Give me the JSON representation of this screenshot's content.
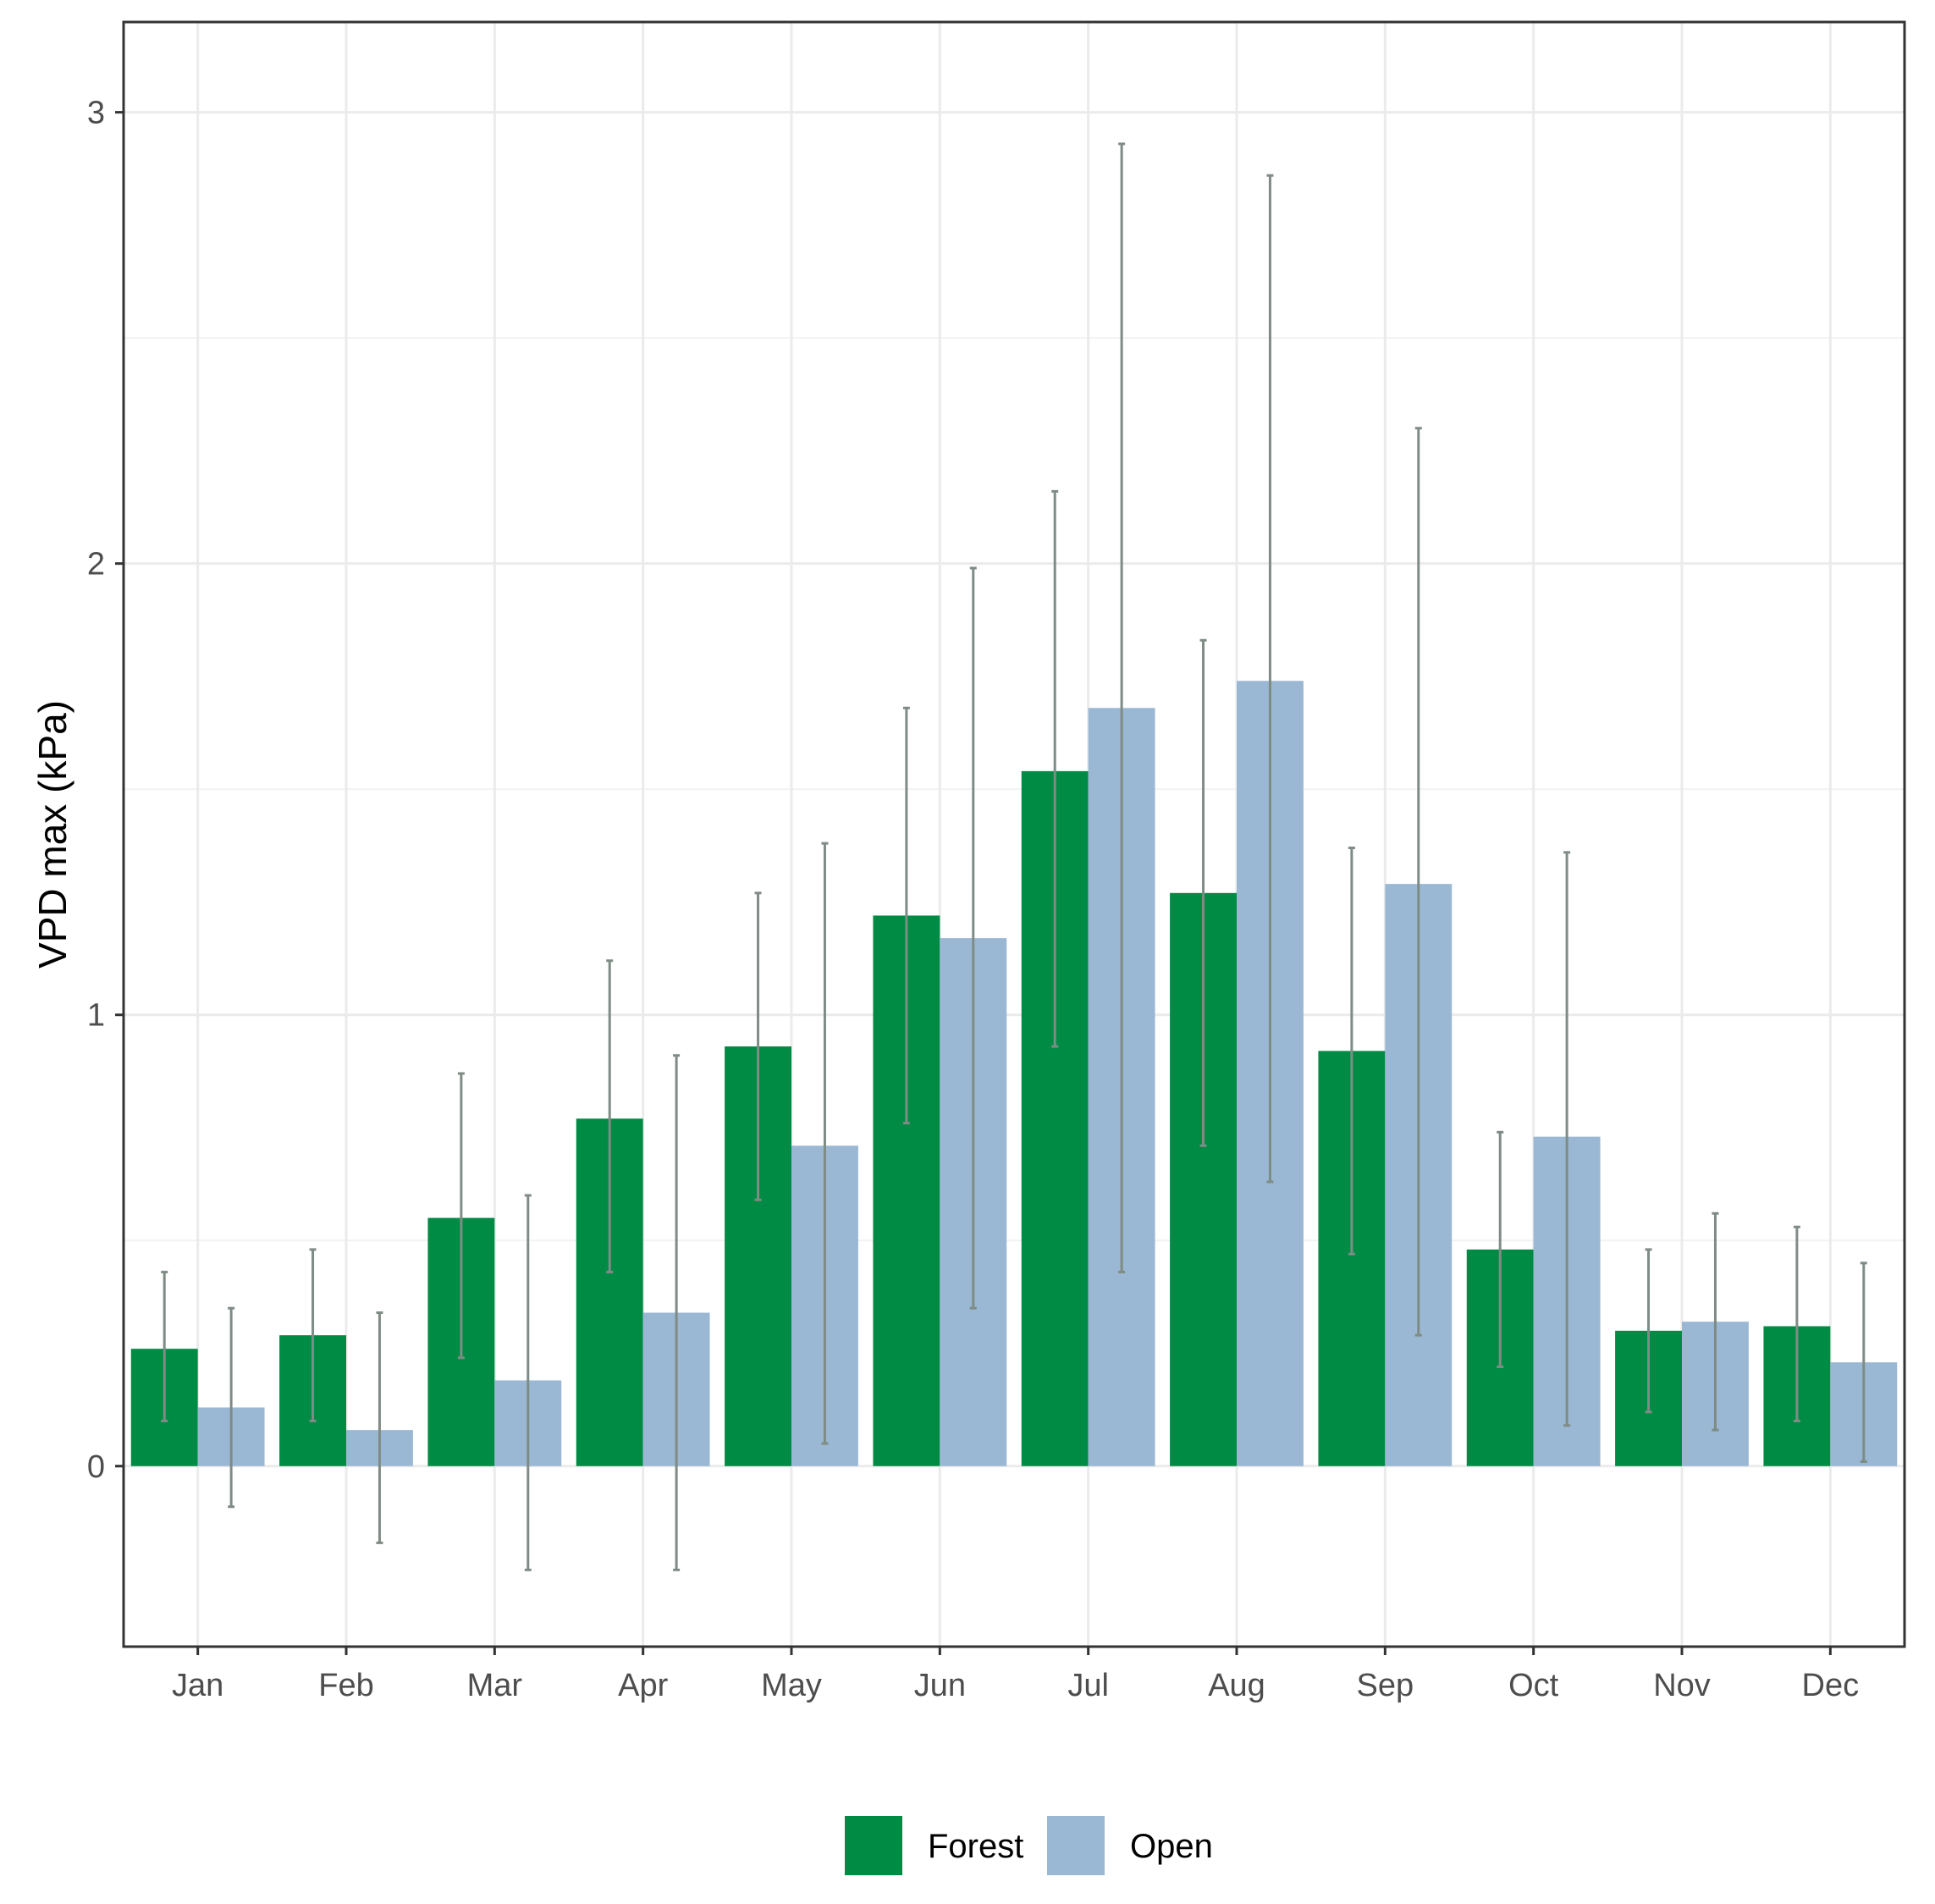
{
  "chart_data": {
    "type": "bar",
    "title": "",
    "xlabel": "",
    "ylabel": "VPD max (kPa)",
    "ylim": [
      -0.4,
      3.2
    ],
    "yticks": [
      0,
      1,
      2,
      3
    ],
    "yticks_minor": [
      0.5,
      1.5,
      2.5
    ],
    "grid": true,
    "legend_position": "bottom",
    "categories": [
      "Jan",
      "Feb",
      "Mar",
      "Apr",
      "May",
      "Jun",
      "Jul",
      "Aug",
      "Sep",
      "Oct",
      "Nov",
      "Dec"
    ],
    "series": [
      {
        "name": "Forest",
        "color": "#008b45",
        "values": [
          0.26,
          0.29,
          0.55,
          0.77,
          0.93,
          1.22,
          1.54,
          1.27,
          0.92,
          0.48,
          0.3,
          0.31
        ],
        "err_low": [
          0.1,
          0.1,
          0.24,
          0.43,
          0.59,
          0.76,
          0.93,
          0.71,
          0.47,
          0.22,
          0.12,
          0.1
        ],
        "err_high": [
          0.43,
          0.48,
          0.87,
          1.12,
          1.27,
          1.68,
          2.16,
          1.83,
          1.37,
          0.74,
          0.48,
          0.53
        ]
      },
      {
        "name": "Open",
        "color": "#9ab8d3",
        "values": [
          0.13,
          0.08,
          0.19,
          0.34,
          0.71,
          1.17,
          1.68,
          1.74,
          1.29,
          0.73,
          0.32,
          0.23
        ],
        "err_low": [
          -0.09,
          -0.17,
          -0.23,
          -0.23,
          0.05,
          0.35,
          0.43,
          0.63,
          0.29,
          0.09,
          0.08,
          0.01
        ],
        "err_high": [
          0.35,
          0.34,
          0.6,
          0.91,
          1.38,
          1.99,
          2.93,
          2.86,
          2.3,
          1.36,
          0.56,
          0.45
        ]
      }
    ]
  }
}
